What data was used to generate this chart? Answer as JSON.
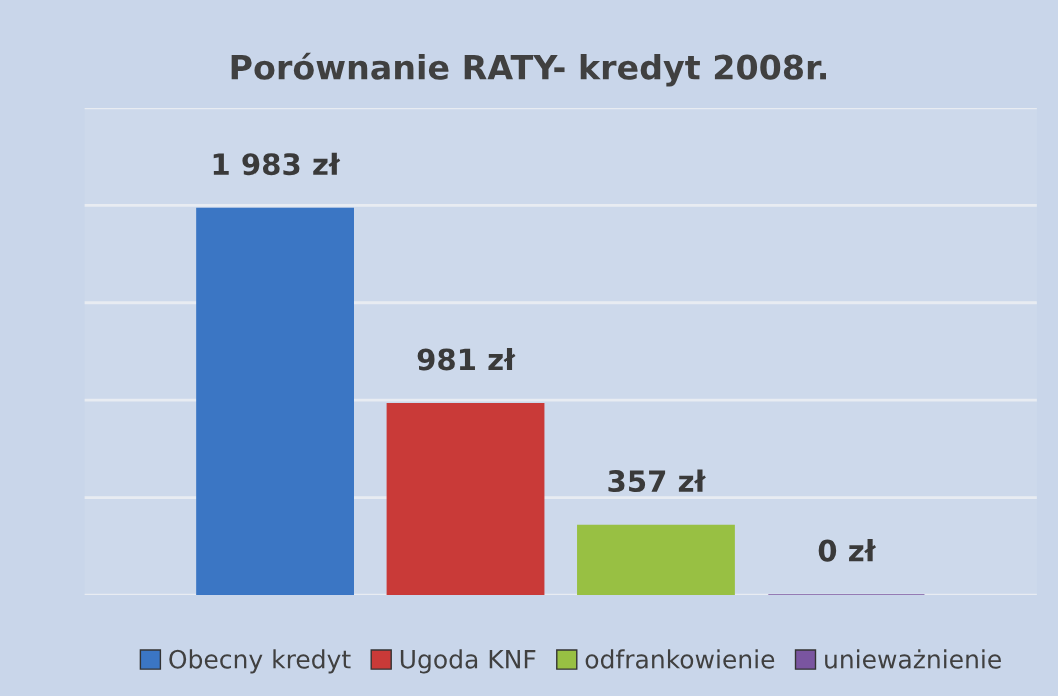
{
  "chart_data": {
    "type": "bar",
    "title": "Porównanie RATY- kredyt 2008r.",
    "categories": [
      null
    ],
    "series": [
      {
        "name": "Obecny kredyt",
        "color": "#3b76c4",
        "values": [
          1983
        ],
        "value_labels": [
          "1 983 zł"
        ]
      },
      {
        "name": "Ugoda KNF",
        "color": "#c93a38",
        "values": [
          981
        ],
        "value_labels": [
          "981 zł"
        ]
      },
      {
        "name": "odfrankowienie",
        "color": "#98c043",
        "values": [
          357
        ],
        "value_labels": [
          "357 zł"
        ]
      },
      {
        "name": "unieważnienie",
        "color": "#7a55a0",
        "values": [
          0
        ],
        "value_labels": [
          "0 zł"
        ]
      }
    ],
    "ylim": [
      0,
      2500
    ],
    "yticks": [
      {
        "value": 0,
        "label": null
      },
      {
        "value": 500,
        "label": null
      },
      {
        "value": 1000,
        "label": null
      },
      {
        "value": 1500,
        "label": null
      },
      {
        "value": 2000,
        "label": null
      },
      {
        "value": 2500,
        "label": null
      }
    ],
    "grid": "y",
    "legend": "bottom"
  }
}
